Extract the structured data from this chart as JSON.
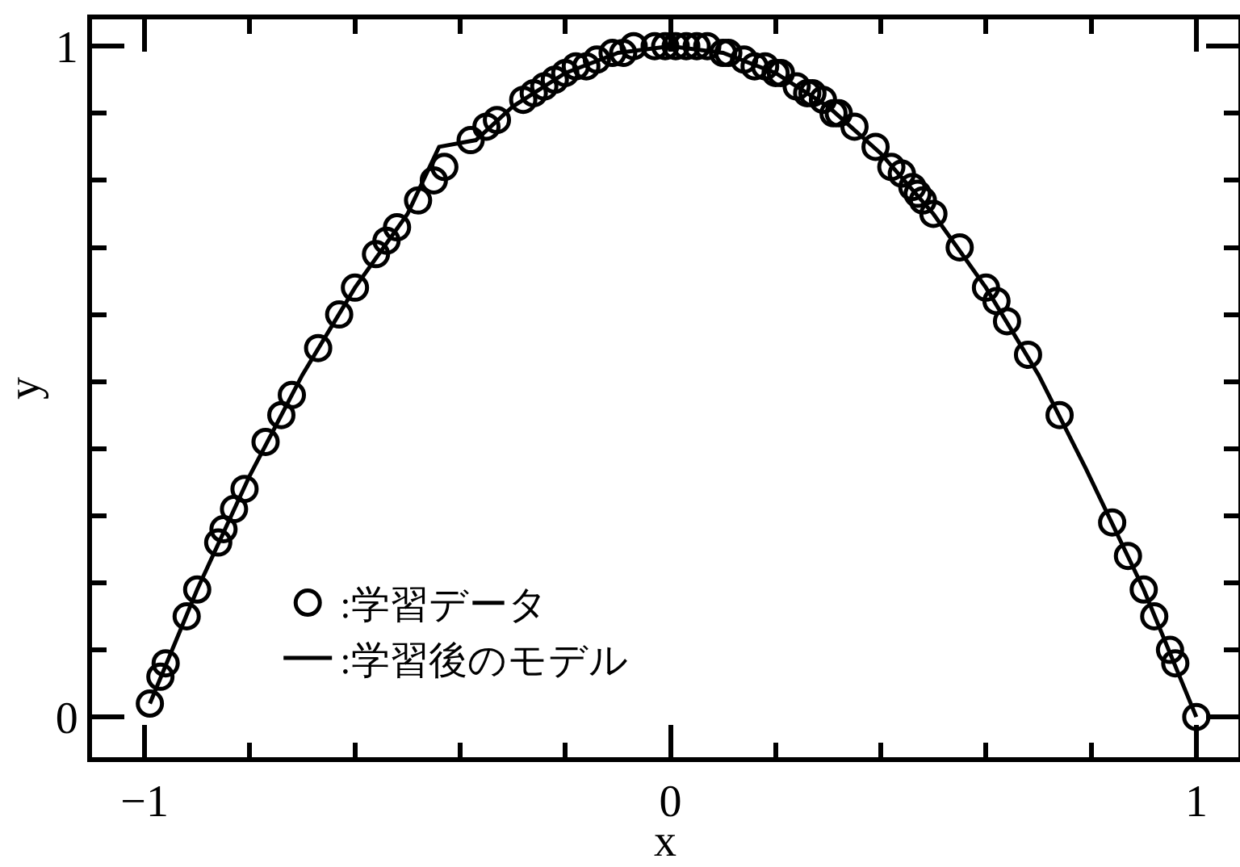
{
  "chart_data": {
    "type": "scatter",
    "xlabel": "x",
    "ylabel": "y",
    "xlim": [
      -1.1,
      1.08
    ],
    "ylim": [
      -0.06,
      1.04
    ],
    "xticks": [
      -1,
      {
        "value": -0.8,
        "label": null
      },
      {
        "value": -0.6,
        "label": null
      },
      {
        "value": -0.4,
        "label": null
      },
      {
        "value": -0.2,
        "label": null
      },
      0,
      {
        "value": 0.2,
        "label": null
      },
      {
        "value": 0.4,
        "label": null
      },
      {
        "value": 0.6,
        "label": null
      },
      {
        "value": 0.8,
        "label": null
      },
      1
    ],
    "yticks": [
      0,
      {
        "value": 0.1,
        "label": null
      },
      {
        "value": 0.2,
        "label": null
      },
      {
        "value": 0.3,
        "label": null
      },
      {
        "value": 0.4,
        "label": null
      },
      {
        "value": 0.5,
        "label": null
      },
      {
        "value": 0.6,
        "label": null
      },
      {
        "value": 0.7,
        "label": null
      },
      {
        "value": 0.8,
        "label": null
      },
      {
        "value": 0.9,
        "label": null
      },
      1
    ],
    "legend": "bottom left",
    "series": [
      {
        "name": ":学習データ",
        "marker": "circle",
        "color": "#000000",
        "x": [
          -0.99,
          -0.97,
          -0.96,
          -0.92,
          -0.9,
          -0.86,
          -0.85,
          -0.83,
          -0.81,
          -0.77,
          -0.74,
          -0.72,
          -0.67,
          -0.63,
          -0.6,
          -0.56,
          -0.54,
          -0.52,
          -0.48,
          -0.45,
          -0.43,
          -0.38,
          -0.35,
          -0.33,
          -0.28,
          -0.26,
          -0.24,
          -0.22,
          -0.2,
          -0.18,
          -0.16,
          -0.14,
          -0.11,
          -0.09,
          -0.07,
          -0.03,
          -0.01,
          0.01,
          0.03,
          0.05,
          0.07,
          0.1,
          0.11,
          0.14,
          0.16,
          0.18,
          0.2,
          0.21,
          0.24,
          0.26,
          0.27,
          0.29,
          0.31,
          0.32,
          0.35,
          0.39,
          0.42,
          0.44,
          0.46,
          0.47,
          0.48,
          0.5,
          0.55,
          0.6,
          0.62,
          0.64,
          0.68,
          0.74,
          0.84,
          0.87,
          0.9,
          0.92,
          0.95,
          0.96,
          1.0
        ],
        "values": [
          0.02,
          0.06,
          0.08,
          0.15,
          0.19,
          0.26,
          0.28,
          0.31,
          0.34,
          0.41,
          0.45,
          0.48,
          0.55,
          0.6,
          0.64,
          0.69,
          0.71,
          0.73,
          0.77,
          0.8,
          0.82,
          0.86,
          0.88,
          0.89,
          0.92,
          0.93,
          0.94,
          0.95,
          0.96,
          0.97,
          0.97,
          0.98,
          0.99,
          0.99,
          1.0,
          1.0,
          1.0,
          1.0,
          1.0,
          1.0,
          1.0,
          0.99,
          0.99,
          0.98,
          0.97,
          0.97,
          0.96,
          0.96,
          0.94,
          0.93,
          0.93,
          0.92,
          0.9,
          0.9,
          0.88,
          0.85,
          0.82,
          0.81,
          0.79,
          0.78,
          0.77,
          0.75,
          0.7,
          0.64,
          0.62,
          0.59,
          0.54,
          0.45,
          0.29,
          0.24,
          0.19,
          0.15,
          0.1,
          0.08,
          0.0
        ]
      },
      {
        "name": ":学習後のモデル",
        "type": "line",
        "marker": "none",
        "line_style": "solid",
        "color": "#000000",
        "x": [
          -0.99,
          -0.9,
          -0.8,
          -0.7,
          -0.6,
          -0.5,
          -0.44,
          -0.37,
          -0.3,
          -0.2,
          -0.1,
          0,
          0.1,
          0.2,
          0.3,
          0.4,
          0.5,
          0.6,
          0.7,
          0.79,
          0.9,
          1.0
        ],
        "values": [
          0.02,
          0.19,
          0.36,
          0.51,
          0.64,
          0.75,
          0.85,
          0.86,
          0.91,
          0.96,
          0.99,
          1.0,
          0.99,
          0.96,
          0.91,
          0.84,
          0.75,
          0.64,
          0.51,
          0.37,
          0.19,
          0.0
        ]
      }
    ]
  }
}
